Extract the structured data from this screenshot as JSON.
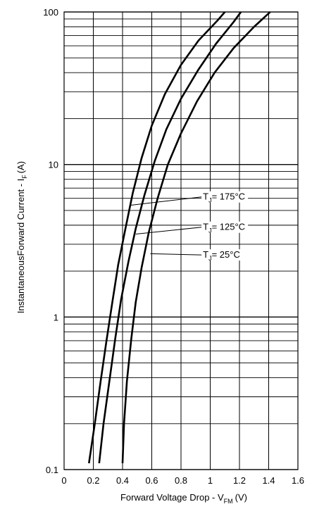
{
  "chart_data": {
    "type": "line",
    "title": "",
    "xlabel": "Forward Voltage Drop - V",
    "xlabel_sub": "FM",
    "xlabel_unit": "(V)",
    "ylabel": "InstantaneousForward Current - I",
    "ylabel_sub": "F",
    "ylabel_unit": "(A)",
    "xlim": [
      0,
      1.6
    ],
    "ylim": [
      0.1,
      100
    ],
    "yscale": "log",
    "grid": true,
    "x_ticks": [
      "0",
      "0.2",
      "0.4",
      "0.6",
      "0.8",
      "1",
      "1.2",
      "1.4",
      "1.6"
    ],
    "y_ticks": [
      "0.1",
      "1",
      "10",
      "100"
    ],
    "series": [
      {
        "name": "TJ= 175°C",
        "x": [
          0.17,
          0.21,
          0.25,
          0.29,
          0.33,
          0.37,
          0.42,
          0.47,
          0.53,
          0.6,
          0.69,
          0.8,
          0.92,
          1.05,
          1.1
        ],
        "y": [
          0.11,
          0.2,
          0.38,
          0.7,
          1.25,
          2.2,
          3.8,
          6.5,
          11,
          18,
          29,
          45,
          65,
          88,
          100
        ]
      },
      {
        "name": "TJ= 125°C",
        "x": [
          0.24,
          0.27,
          0.31,
          0.35,
          0.39,
          0.44,
          0.49,
          0.55,
          0.62,
          0.7,
          0.8,
          0.92,
          1.04,
          1.16,
          1.21
        ],
        "y": [
          0.11,
          0.2,
          0.38,
          0.72,
          1.3,
          2.3,
          3.8,
          6.3,
          10.5,
          17,
          27,
          42,
          62,
          86,
          100
        ]
      },
      {
        "name": "TJ= 25°C",
        "x": [
          0.4,
          0.41,
          0.43,
          0.46,
          0.49,
          0.53,
          0.58,
          0.64,
          0.71,
          0.8,
          0.91,
          1.03,
          1.16,
          1.3,
          1.41
        ],
        "y": [
          0.11,
          0.2,
          0.38,
          0.72,
          1.25,
          2.1,
          3.6,
          6.0,
          10,
          16,
          26,
          40,
          58,
          80,
          100
        ]
      }
    ],
    "annotations": [
      {
        "prefix": "T",
        "sub": "J",
        "text": "= 175°C",
        "pointer_x": 0.45,
        "pointer_y": 5.4
      },
      {
        "prefix": "T",
        "sub": "J",
        "text": "= 125°C",
        "pointer_x": 0.49,
        "pointer_y": 3.5
      },
      {
        "prefix": "T",
        "sub": "J",
        "text": "=  25°C",
        "pointer_x": 0.59,
        "pointer_y": 2.6
      }
    ],
    "annotation_label_x": 0.95,
    "annotation_label_y": [
      6.0,
      3.8,
      2.5
    ]
  },
  "colors": {
    "line": "#000000",
    "grid": "#000000",
    "background": "#ffffff"
  }
}
